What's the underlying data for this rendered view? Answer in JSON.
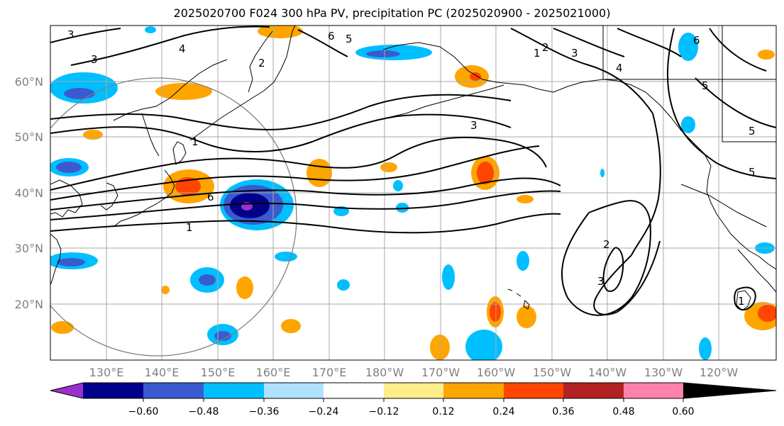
{
  "title": "2025020700 F024 300 hPa PV, precipitation PC (2025020900 - 2025021000)",
  "lat_labels": [
    "60°N",
    "50°N",
    "40°N",
    "30°N",
    "20°N"
  ],
  "lon_labels": [
    "130°E",
    "140°E",
    "150°E",
    "160°E",
    "170°E",
    "180°W",
    "170°W",
    "160°W",
    "150°W",
    "140°W",
    "130°W",
    "120°W"
  ],
  "contour_labels": [
    "3",
    "4",
    "2",
    "6",
    "5",
    "1",
    "6",
    "1",
    "3",
    "2",
    "1",
    "3",
    "4",
    "5",
    "6",
    "5",
    "5",
    "3",
    "2",
    "3",
    "1"
  ],
  "colorbar": {
    "tick_labels": [
      "−0.60",
      "−0.48",
      "−0.36",
      "−0.24",
      "−0.12",
      "0.12",
      "0.24",
      "0.36",
      "0.48",
      "0.60"
    ],
    "colors": [
      "#9932cc",
      "#00008b",
      "#3a5bd0",
      "#00bfff",
      "#b0e2ff",
      "#ffffff",
      "#ffec8b",
      "#ffa500",
      "#ff4500",
      "#b22222",
      "#ff82ab"
    ]
  },
  "colors": {
    "grid": "#a9a9a9",
    "coast": "#000000",
    "range_circle": "#808080"
  }
}
